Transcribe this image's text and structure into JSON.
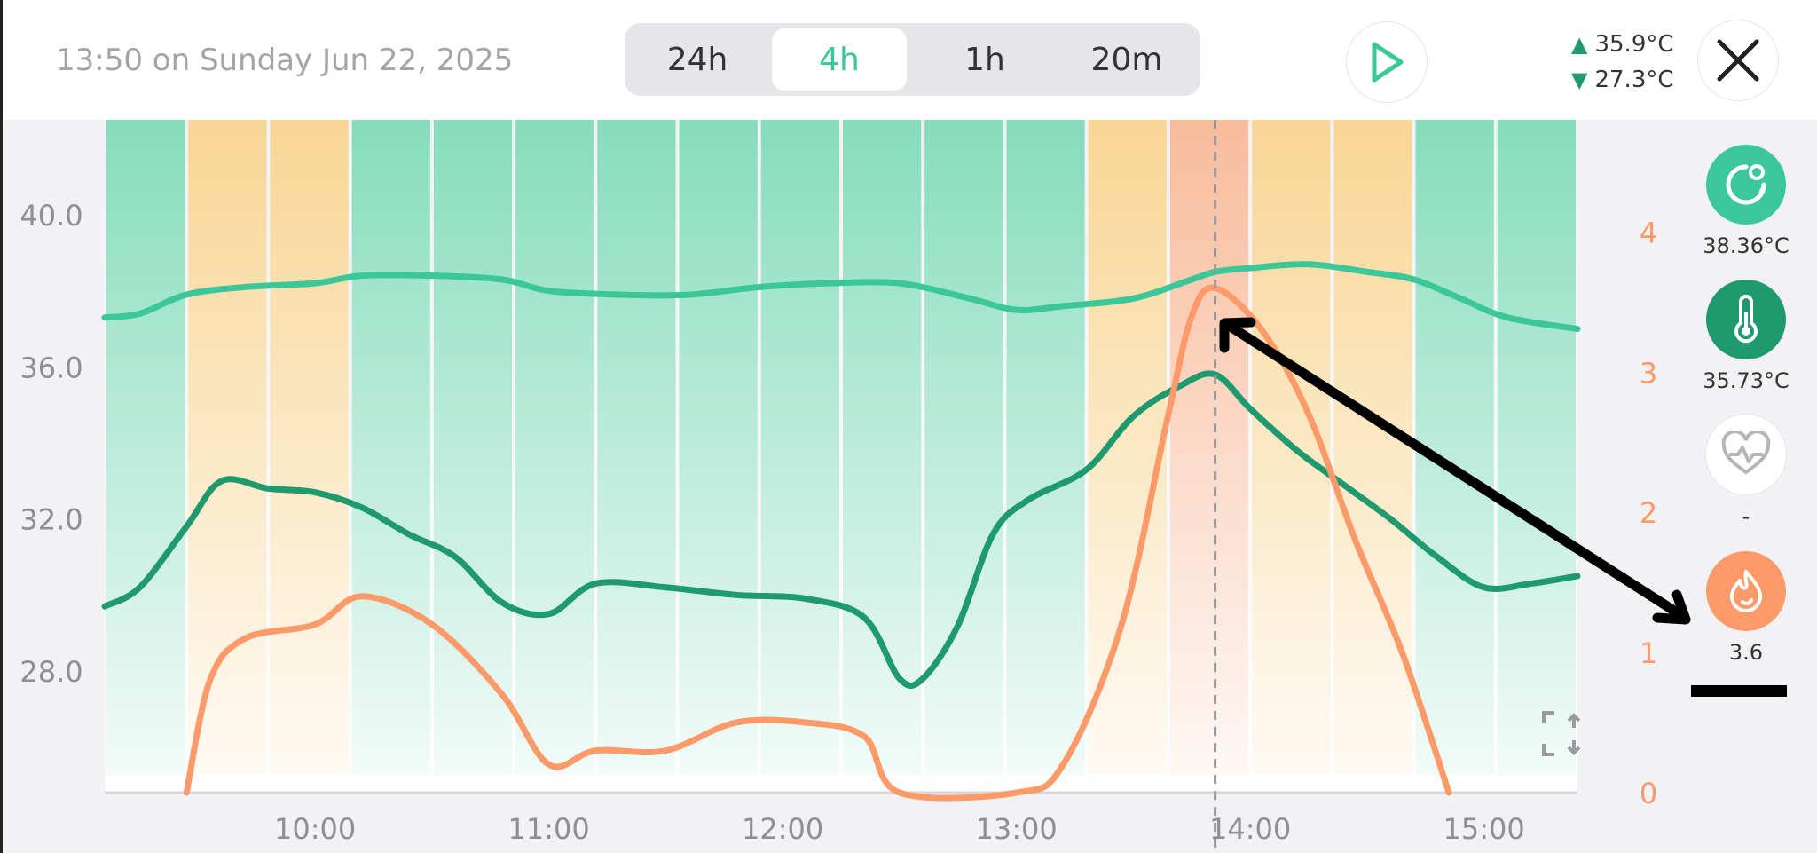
{
  "header": {
    "timestamp": "13:50 on Sunday Jun 22, 2025",
    "ranges": [
      "24h",
      "4h",
      "1h",
      "20m"
    ],
    "active_range": "4h",
    "max_temp": "35.9°C",
    "min_temp": "27.3°C"
  },
  "sidebar": {
    "items": [
      {
        "icon": "core-temp-icon",
        "value": "38.36°C",
        "color": "#3cc79a"
      },
      {
        "icon": "thermometer-icon",
        "value": "35.73°C",
        "color": "#1f9a6e"
      },
      {
        "icon": "heart-rate-icon",
        "value": "-",
        "color": "#ffffff"
      },
      {
        "icon": "flame-icon",
        "value": "3.6",
        "color": "#fd9a6a"
      }
    ]
  },
  "chart_data": {
    "type": "line",
    "x_ticks": [
      "10:00",
      "11:00",
      "12:00",
      "13:00",
      "14:00",
      "15:00"
    ],
    "y_left_ticks": [
      "40.0",
      "36.0",
      "32.0",
      "28.0"
    ],
    "y_right_ticks": [
      "4",
      "3",
      "2",
      "1",
      "0"
    ],
    "ylim_left": [
      24.8,
      42.5
    ],
    "ylim_right": [
      0,
      4.8
    ],
    "x_range_hours": [
      9.1,
      15.4
    ],
    "cursor_time": 13.85,
    "colors": {
      "green": "#86dcbd",
      "amber": "#f8d695",
      "red": "#f8bc9c",
      "core": "#3cc79a",
      "skin": "#1f9a6e",
      "strain": "#fd9a6a"
    },
    "zones": [
      "green",
      "amber",
      "amber",
      "green",
      "green",
      "green",
      "green",
      "green",
      "green",
      "green",
      "green",
      "green",
      "amber",
      "red",
      "amber",
      "amber",
      "green",
      "green"
    ],
    "series": [
      {
        "key": "core",
        "axis": "left",
        "color": "#3cc79a",
        "x": [
          9.1,
          9.25,
          9.45,
          9.7,
          10.0,
          10.2,
          10.5,
          10.8,
          11.0,
          11.3,
          11.6,
          11.9,
          12.2,
          12.5,
          12.8,
          13.0,
          13.2,
          13.5,
          13.75,
          13.85,
          14.0,
          14.25,
          14.5,
          14.7,
          14.9,
          15.1,
          15.4
        ],
        "y": [
          37.3,
          37.4,
          37.9,
          38.1,
          38.2,
          38.4,
          38.4,
          38.3,
          38.0,
          37.9,
          37.9,
          38.1,
          38.2,
          38.2,
          37.8,
          37.5,
          37.6,
          37.8,
          38.3,
          38.5,
          38.6,
          38.7,
          38.5,
          38.3,
          37.8,
          37.3,
          37.0
        ]
      },
      {
        "key": "skin",
        "axis": "left",
        "color": "#1f9a6e",
        "x": [
          9.1,
          9.25,
          9.45,
          9.6,
          9.8,
          10.0,
          10.2,
          10.4,
          10.6,
          10.8,
          11.0,
          11.2,
          11.5,
          11.8,
          12.1,
          12.35,
          12.5,
          12.6,
          12.75,
          12.9,
          13.05,
          13.3,
          13.5,
          13.7,
          13.85,
          14.0,
          14.2,
          14.4,
          14.6,
          14.8,
          15.0,
          15.2,
          15.4
        ],
        "y": [
          29.7,
          30.2,
          31.8,
          33.0,
          32.8,
          32.7,
          32.3,
          31.6,
          31.0,
          29.8,
          29.5,
          30.3,
          30.2,
          30.0,
          29.9,
          29.4,
          27.8,
          27.8,
          29.2,
          31.6,
          32.5,
          33.3,
          34.7,
          35.5,
          35.8,
          34.9,
          33.8,
          32.9,
          32.0,
          31.0,
          30.2,
          30.3,
          30.5
        ]
      },
      {
        "key": "strain",
        "axis": "right",
        "color": "#fd9a6a",
        "x": [
          9.45,
          9.55,
          9.7,
          10.0,
          10.2,
          10.5,
          10.8,
          11.0,
          11.2,
          11.5,
          11.8,
          12.1,
          12.35,
          12.5,
          13.0,
          13.2,
          13.45,
          13.65,
          13.75,
          13.85,
          14.05,
          14.25,
          14.45,
          14.65,
          14.85
        ],
        "y": [
          0,
          0.8,
          1.1,
          1.2,
          1.4,
          1.2,
          0.7,
          0.2,
          0.3,
          0.3,
          0.5,
          0.5,
          0.4,
          0,
          0,
          0.2,
          1.2,
          2.7,
          3.4,
          3.6,
          3.3,
          2.7,
          1.8,
          1.0,
          0
        ]
      }
    ]
  }
}
